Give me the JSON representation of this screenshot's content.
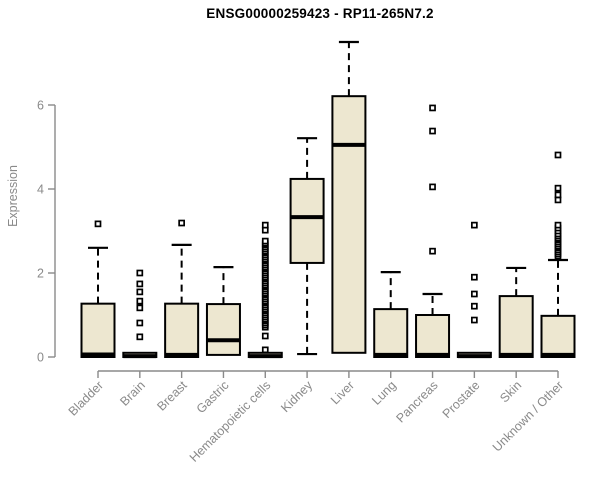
{
  "chart_data": {
    "type": "boxplot",
    "title": "ENSG00000259423 - RP11-265N7.2",
    "ylabel": "Expression",
    "xlabel": "",
    "ylim": [
      0,
      7.5
    ],
    "yticks": [
      "0",
      "2",
      "4",
      "6"
    ],
    "grid": false,
    "legend": "none",
    "categories": [
      "Bladder",
      "Brain",
      "Breast",
      "Gastric",
      "Hematopoietic cells",
      "Kidney",
      "Liver",
      "Lung",
      "Pancreas",
      "Prostate",
      "Skin",
      "Unknown / Other"
    ],
    "series": [
      {
        "category": "Bladder",
        "q1": 0.0,
        "median": 0.06,
        "q3": 1.27,
        "whisker_low": 0.0,
        "whisker_high": 2.6,
        "outliers": [
          3.17
        ]
      },
      {
        "category": "Brain",
        "q1": 0.0,
        "median": 0.02,
        "q3": 0.1,
        "whisker_low": 0.0,
        "whisker_high": 0.1,
        "outliers": [
          0.48,
          0.81,
          1.17,
          1.33,
          1.55,
          1.74,
          2.0
        ]
      },
      {
        "category": "Breast",
        "q1": 0.0,
        "median": 0.05,
        "q3": 1.27,
        "whisker_low": 0.0,
        "whisker_high": 2.67,
        "outliers": [
          3.19
        ]
      },
      {
        "category": "Gastric",
        "q1": 0.05,
        "median": 0.4,
        "q3": 1.26,
        "whisker_low": 0.05,
        "whisker_high": 2.14,
        "outliers": []
      },
      {
        "category": "Hematopoietic cells",
        "q1": 0.0,
        "median": 0.02,
        "q3": 0.1,
        "whisker_low": 0.0,
        "whisker_high": 0.1,
        "outliers": [
          0.17,
          0.5,
          0.71,
          0.76,
          0.81,
          0.86,
          0.9,
          0.95,
          1.0,
          1.05,
          1.1,
          1.14,
          1.19,
          1.24,
          1.29,
          1.33,
          1.38,
          1.43,
          1.48,
          1.52,
          1.57,
          1.62,
          1.67,
          1.71,
          1.76,
          1.81,
          1.86,
          1.9,
          1.95,
          2.0,
          2.05,
          2.1,
          2.14,
          2.19,
          2.24,
          2.29,
          2.33,
          2.38,
          2.43,
          2.48,
          2.52,
          2.57,
          2.62,
          2.67,
          2.71,
          2.76,
          3.02,
          3.14
        ]
      },
      {
        "category": "Kidney",
        "q1": 2.24,
        "median": 3.33,
        "q3": 4.24,
        "whisker_low": 0.07,
        "whisker_high": 5.21,
        "outliers": []
      },
      {
        "category": "Liver",
        "q1": 0.1,
        "median": 5.05,
        "q3": 6.21,
        "whisker_low": 0.1,
        "whisker_high": 7.5,
        "outliers": []
      },
      {
        "category": "Lung",
        "q1": 0.0,
        "median": 0.05,
        "q3": 1.14,
        "whisker_low": 0.0,
        "whisker_high": 2.02,
        "outliers": []
      },
      {
        "category": "Pancreas",
        "q1": 0.0,
        "median": 0.05,
        "q3": 1.0,
        "whisker_low": 0.0,
        "whisker_high": 1.5,
        "outliers": [
          2.52,
          4.05,
          5.38,
          5.93
        ]
      },
      {
        "category": "Prostate",
        "q1": 0.0,
        "median": 0.02,
        "q3": 0.1,
        "whisker_low": 0.0,
        "whisker_high": 0.1,
        "outliers": [
          0.88,
          1.21,
          1.5,
          1.9,
          3.14
        ]
      },
      {
        "category": "Skin",
        "q1": 0.0,
        "median": 0.05,
        "q3": 1.45,
        "whisker_low": 0.0,
        "whisker_high": 2.12,
        "outliers": []
      },
      {
        "category": "Unknown / Other",
        "q1": 0.0,
        "median": 0.05,
        "q3": 0.98,
        "whisker_low": 0.0,
        "whisker_high": 2.31,
        "outliers": [
          2.4,
          2.45,
          2.5,
          2.55,
          2.6,
          2.64,
          2.69,
          2.74,
          2.79,
          2.83,
          2.88,
          2.93,
          3.0,
          3.07,
          3.14,
          3.74,
          3.86,
          4.02,
          4.81
        ]
      }
    ],
    "colors": {
      "box_fill": "#EDE7D0",
      "box_stroke": "#000000",
      "median": "#000000",
      "whisker": "#000000",
      "outlier_stroke": "#000000",
      "outlier_fill": "#ffffff",
      "axis": "#8a8a8a",
      "tick_label": "#8a8a8a",
      "title": "#000000"
    }
  }
}
